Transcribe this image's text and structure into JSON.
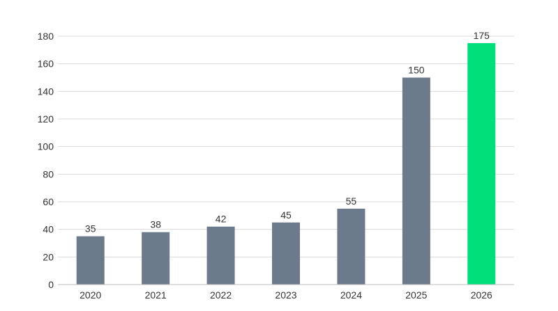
{
  "chart_data": {
    "type": "bar",
    "categories": [
      "2020",
      "2021",
      "2022",
      "2023",
      "2024",
      "2025",
      "2026"
    ],
    "values": [
      35,
      38,
      42,
      45,
      55,
      150,
      175
    ],
    "y_ticks": [
      0,
      20,
      40,
      60,
      80,
      100,
      120,
      140,
      160,
      180
    ],
    "ylim": [
      0,
      180
    ],
    "title": "",
    "xlabel": "",
    "ylabel": "",
    "grid": true,
    "colors": {
      "default_bar": "#6b7b8c",
      "highlight_bar": "#00e07a"
    },
    "highlight_index": 6
  }
}
